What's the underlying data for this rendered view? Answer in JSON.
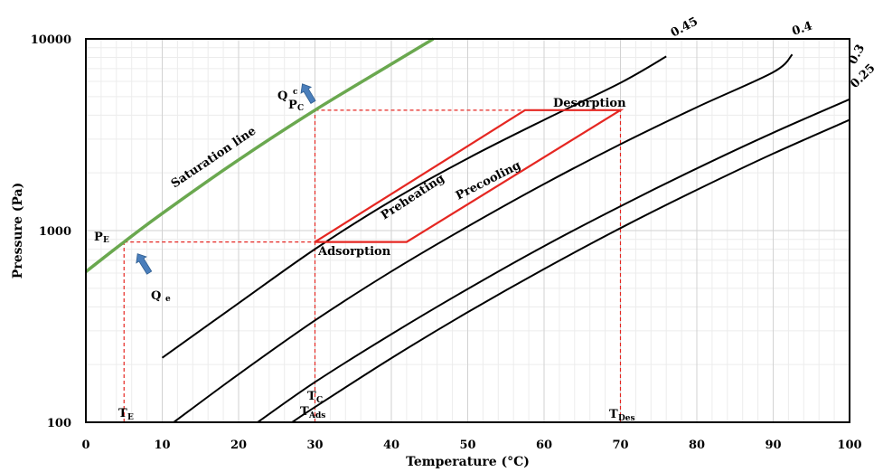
{
  "chart_data": {
    "type": "line",
    "xlabel": "Temperature (°C)",
    "ylabel": "Pressure (Pa)",
    "xlim": [
      0,
      100
    ],
    "ylim": [
      100,
      10000
    ],
    "y_scale": "log",
    "grid": true,
    "x_ticks": [
      "0",
      "10",
      "20",
      "30",
      "40",
      "50",
      "60",
      "70",
      "80",
      "90",
      "100"
    ],
    "y_ticks": [
      {
        "value": 100,
        "label": "100"
      },
      {
        "value": 1000,
        "label": "1000"
      },
      {
        "value": 10000,
        "label": "10000"
      }
    ],
    "saturation": {
      "label": "Saturation line",
      "color": "#6aa84f",
      "x": [
        0,
        5,
        10,
        20,
        30,
        40,
        45.5
      ],
      "y": [
        610,
        872,
        1228,
        2339,
        4247,
        7385,
        10000
      ]
    },
    "isosteres": [
      {
        "label": "0.45",
        "x": [
          10,
          20,
          30,
          40,
          50,
          60,
          70,
          76
        ],
        "y": [
          217,
          418,
          800,
          1430,
          2380,
          3780,
          5900,
          8100
        ]
      },
      {
        "label": "0.4",
        "x": [
          11.5,
          20,
          30,
          40,
          50,
          60,
          70,
          80,
          90,
          92.5
        ],
        "y": [
          100,
          178,
          340,
          612,
          1050,
          1750,
          2820,
          4400,
          6700,
          8300
        ]
      },
      {
        "label": "0.3",
        "x": [
          22.5,
          30,
          40,
          50,
          60,
          70,
          80,
          90,
          100
        ],
        "y": [
          100,
          162,
          288,
          496,
          830,
          1340,
          2110,
          3240,
          4840
        ]
      },
      {
        "label": "0.25",
        "x": [
          27,
          30,
          40,
          50,
          60,
          70,
          80,
          90,
          100
        ],
        "y": [
          100,
          120,
          216,
          375,
          630,
          1030,
          1630,
          2520,
          3780
        ]
      }
    ],
    "cycle": {
      "color": "#e52722",
      "x": [
        30,
        42,
        70,
        57.5,
        30
      ],
      "y": [
        872,
        872,
        4247,
        4247,
        872
      ]
    },
    "guides": [
      {
        "x": [
          5,
          5
        ],
        "y": [
          100,
          872
        ]
      },
      {
        "x": [
          5,
          30
        ],
        "y": [
          872,
          872
        ]
      },
      {
        "x": [
          30,
          30
        ],
        "y": [
          100,
          4247
        ]
      },
      {
        "x": [
          30,
          70
        ],
        "y": [
          4247,
          4247
        ]
      },
      {
        "x": [
          70,
          70
        ],
        "y": [
          100,
          4247
        ]
      }
    ],
    "annotations": {
      "saturation_line": "Saturation line",
      "adsorption": "Adsorption",
      "desorption": "Desorption",
      "preheating": "Preheating",
      "precooling": "Precooling",
      "qc_main": "Q",
      "qc_sub": "c",
      "qe_main": "Q",
      "qe_sub": "e",
      "pc_main": "P",
      "pc_sub": "C",
      "pe_main": "P",
      "pe_sub": "E",
      "te_main": "T",
      "te_sub": "E",
      "tc_main": "T",
      "tc_sub": "C",
      "tads_main": "T",
      "tads_sub": "Ads",
      "tdes_main": "T",
      "tdes_sub": "Des"
    },
    "arrow_color": "#4a7ebb"
  }
}
